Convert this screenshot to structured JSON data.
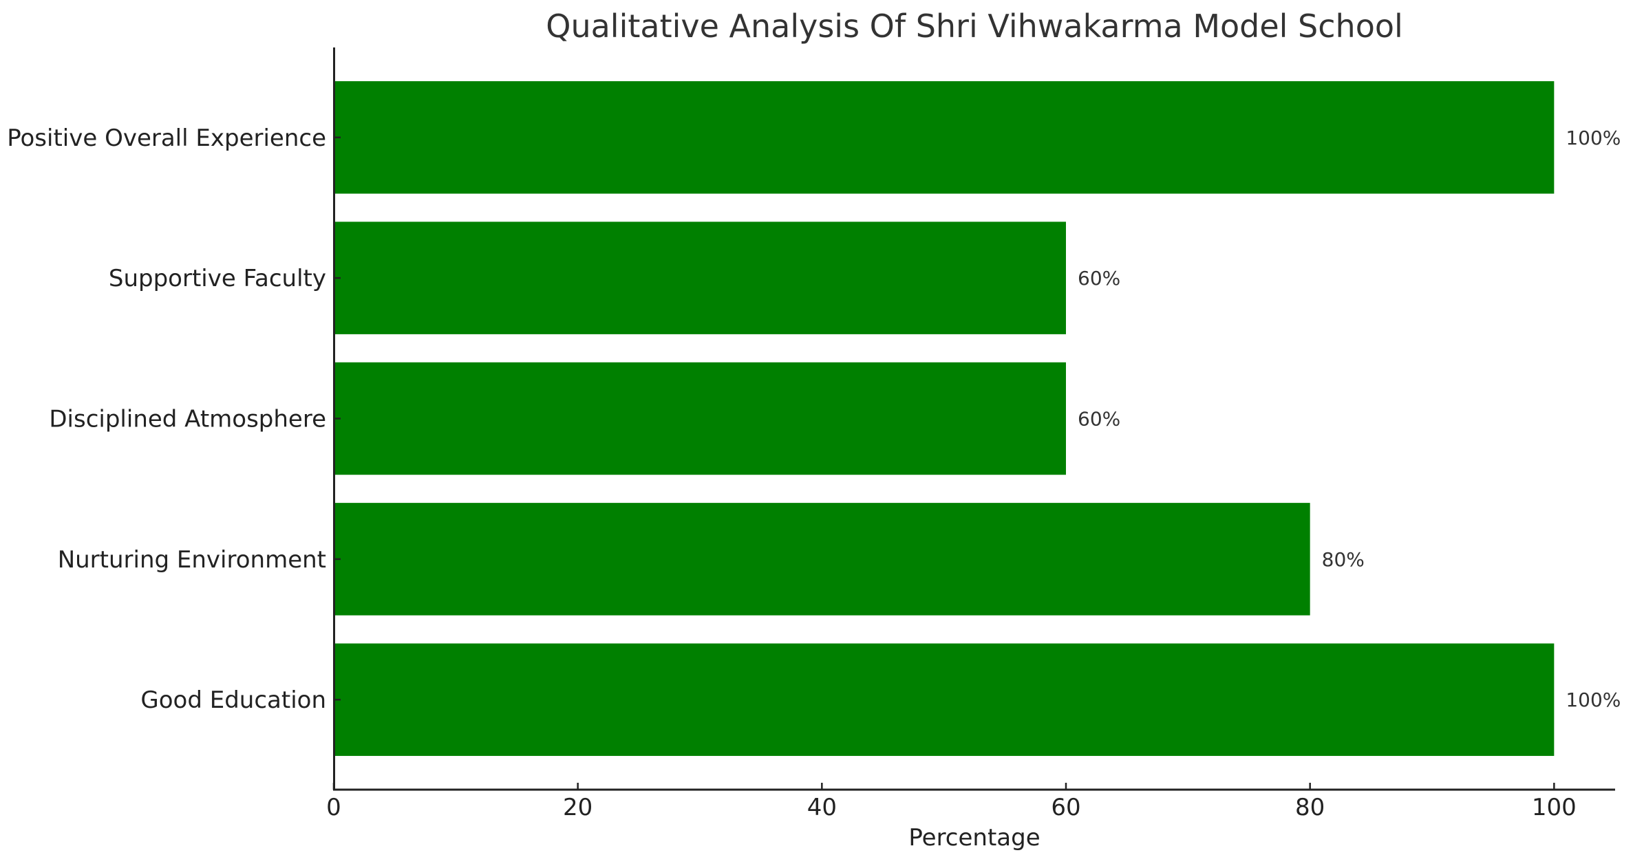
{
  "chart_data": {
    "type": "bar",
    "orientation": "horizontal",
    "title": "Qualitative Analysis Of Shri Vihwakarma Model School",
    "xlabel": "Percentage",
    "ylabel": "",
    "categories": [
      "Positive Overall Experience",
      "Supportive Faculty",
      "Disciplined Atmosphere",
      "Nurturing Environment",
      "Good Education"
    ],
    "values": [
      100,
      60,
      60,
      80,
      100
    ],
    "value_labels": [
      "100%",
      "60%",
      "60%",
      "80%",
      "100%"
    ],
    "xlim": [
      0,
      105
    ],
    "xticks": [
      0,
      20,
      40,
      60,
      80,
      100
    ],
    "xtick_labels": [
      "0",
      "20",
      "40",
      "60",
      "80",
      "100"
    ],
    "grid": false,
    "legend": null,
    "bar_color": "#008000",
    "spines": [
      "left",
      "bottom"
    ],
    "tick_direction": "in"
  }
}
